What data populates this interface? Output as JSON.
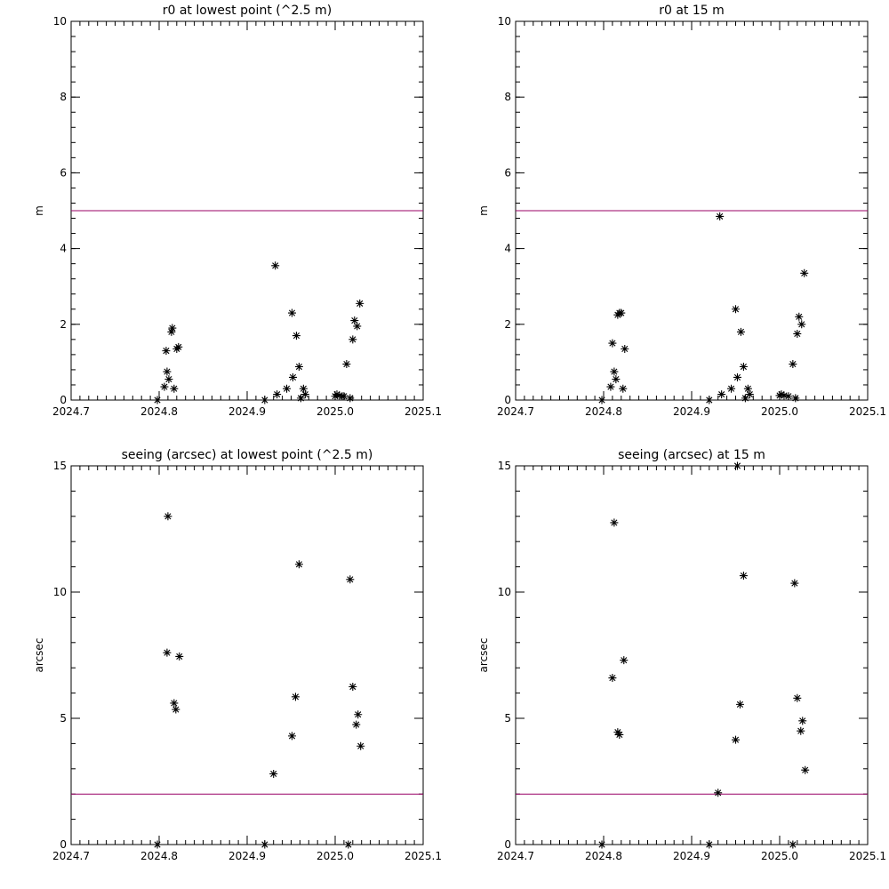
{
  "colors": {
    "axis": "#000000",
    "marker": "#000000",
    "reference_line": "#990066",
    "background": "#ffffff"
  },
  "chart_data": [
    {
      "type": "scatter",
      "title": "r0 at lowest point (^2.5 m)",
      "xlabel": "",
      "ylabel": "m",
      "xlim": [
        2024.7,
        2025.1
      ],
      "ylim": [
        0,
        10
      ],
      "xticks": [
        "2024.7",
        "2024.8",
        "2024.9",
        "2025.0",
        "2025.1"
      ],
      "yticks": [
        "0",
        "2",
        "4",
        "6",
        "8",
        "10"
      ],
      "xtick_values": [
        2024.7,
        2024.8,
        2024.9,
        2025.0,
        2025.1
      ],
      "ytick_values": [
        0,
        2,
        4,
        6,
        8,
        10
      ],
      "x_minor_step": 0.01,
      "y_minor_step": 0.4,
      "reference_line": 5.0,
      "grid": false,
      "marker": "asterisk",
      "x": [
        2024.798,
        2024.806,
        2024.808,
        2024.809,
        2024.811,
        2024.814,
        2024.815,
        2024.817,
        2024.82,
        2024.822,
        2024.92,
        2024.932,
        2024.934,
        2024.945,
        2024.951,
        2024.952,
        2024.956,
        2024.959,
        2024.961,
        2024.964,
        2024.966,
        2025.0,
        2025.002,
        2025.005,
        2025.008,
        2025.01,
        2025.013,
        2025.017,
        2025.02,
        2025.022,
        2025.025,
        2025.028
      ],
      "y": [
        0.0,
        0.35,
        1.3,
        0.75,
        0.55,
        1.8,
        1.9,
        0.3,
        1.35,
        1.4,
        0.0,
        3.55,
        0.15,
        0.3,
        2.3,
        0.6,
        1.7,
        0.88,
        0.05,
        0.3,
        0.15,
        0.1,
        0.15,
        0.12,
        0.1,
        0.1,
        0.95,
        0.05,
        1.6,
        2.1,
        1.95,
        2.55
      ]
    },
    {
      "type": "scatter",
      "title": "r0 at 15 m",
      "xlabel": "",
      "ylabel": "m",
      "xlim": [
        2024.7,
        2025.1
      ],
      "ylim": [
        0,
        10
      ],
      "xticks": [
        "2024.7",
        "2024.8",
        "2024.9",
        "2025.0",
        "2025.1"
      ],
      "yticks": [
        "0",
        "2",
        "4",
        "6",
        "8",
        "10"
      ],
      "xtick_values": [
        2024.7,
        2024.8,
        2024.9,
        2025.0,
        2025.1
      ],
      "ytick_values": [
        0,
        2,
        4,
        6,
        8,
        10
      ],
      "x_minor_step": 0.01,
      "y_minor_step": 0.4,
      "reference_line": 5.0,
      "grid": false,
      "marker": "asterisk",
      "x": [
        2024.798,
        2024.808,
        2024.81,
        2024.812,
        2024.814,
        2024.816,
        2024.818,
        2024.82,
        2024.822,
        2024.824,
        2024.92,
        2024.932,
        2024.934,
        2024.945,
        2024.95,
        2024.952,
        2024.956,
        2024.959,
        2024.961,
        2024.964,
        2024.966,
        2025.0,
        2025.002,
        2025.005,
        2025.01,
        2025.015,
        2025.018,
        2025.02,
        2025.022,
        2025.025,
        2025.028
      ],
      "y": [
        0.0,
        0.35,
        1.5,
        0.75,
        0.55,
        2.25,
        2.3,
        2.3,
        0.3,
        1.35,
        0.0,
        4.85,
        0.15,
        0.3,
        2.4,
        0.6,
        1.8,
        0.88,
        0.05,
        0.3,
        0.15,
        0.12,
        0.15,
        0.12,
        0.1,
        0.95,
        0.05,
        1.75,
        2.2,
        2.0,
        3.35
      ]
    },
    {
      "type": "scatter",
      "title": "seeing (arcsec) at lowest point (^2.5 m)",
      "xlabel": "",
      "ylabel": "arcsec",
      "xlim": [
        2024.7,
        2025.1
      ],
      "ylim": [
        0,
        15
      ],
      "xticks": [
        "2024.7",
        "2024.8",
        "2024.9",
        "2025.0",
        "2025.1"
      ],
      "yticks": [
        "0",
        "5",
        "10",
        "15"
      ],
      "xtick_values": [
        2024.7,
        2024.8,
        2024.9,
        2025.0,
        2025.1
      ],
      "ytick_values": [
        0,
        5,
        10,
        15
      ],
      "x_minor_step": 0.01,
      "y_minor_step": 1,
      "reference_line": 2.0,
      "grid": false,
      "marker": "asterisk",
      "x": [
        2024.798,
        2024.809,
        2024.81,
        2024.817,
        2024.819,
        2024.823,
        2024.92,
        2024.93,
        2024.951,
        2024.955,
        2024.959,
        2025.015,
        2025.017,
        2025.02,
        2025.024,
        2025.026,
        2025.029
      ],
      "y": [
        0.0,
        7.6,
        13.0,
        5.6,
        5.35,
        7.45,
        0.0,
        2.8,
        4.3,
        5.85,
        11.1,
        0.0,
        10.5,
        6.25,
        4.75,
        5.15,
        3.9
      ]
    },
    {
      "type": "scatter",
      "title": "seeing (arcsec) at 15 m",
      "xlabel": "",
      "ylabel": "arcsec",
      "xlim": [
        2024.7,
        2025.1
      ],
      "ylim": [
        0,
        15
      ],
      "xticks": [
        "2024.7",
        "2024.8",
        "2024.9",
        "2025.0",
        "2025.1"
      ],
      "yticks": [
        "0",
        "5",
        "10",
        "15"
      ],
      "xtick_values": [
        2024.7,
        2024.8,
        2024.9,
        2025.0,
        2025.1
      ],
      "ytick_values": [
        0,
        5,
        10,
        15
      ],
      "x_minor_step": 0.01,
      "y_minor_step": 1,
      "reference_line": 2.0,
      "grid": false,
      "marker": "asterisk",
      "x": [
        2024.798,
        2024.81,
        2024.812,
        2024.816,
        2024.818,
        2024.823,
        2024.92,
        2024.93,
        2024.95,
        2024.952,
        2024.955,
        2024.959,
        2025.015,
        2025.017,
        2025.02,
        2025.024,
        2025.026,
        2025.029
      ],
      "y": [
        0.0,
        6.6,
        12.75,
        4.45,
        4.35,
        7.3,
        0.0,
        2.05,
        4.15,
        15.0,
        5.55,
        10.65,
        0.0,
        10.35,
        5.8,
        4.5,
        4.9,
        2.95
      ]
    }
  ]
}
